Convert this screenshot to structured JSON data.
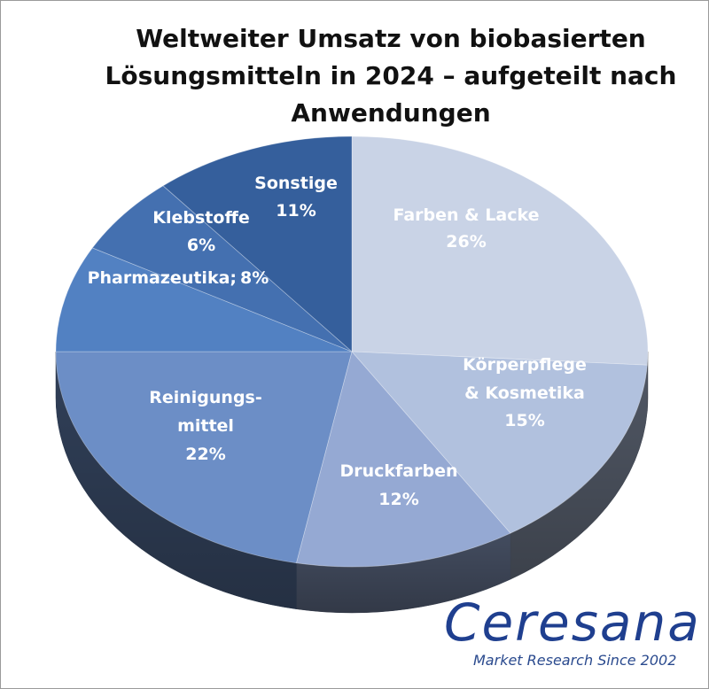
{
  "chart_data": {
    "type": "pie",
    "title": "Weltweiter Umsatz von biobasierten Lösungsmitteln in 2024 – aufgeteilt nach Anwendungen",
    "categories": [
      "Farben & Lacke",
      "Körperpflege\n& Kosmetika",
      "Druckfarben",
      "Reinigungs-\nmittel",
      "Pharmazeutika;",
      "Klebstoffe",
      "Sonstige"
    ],
    "values": [
      26,
      15,
      12,
      22,
      8,
      6,
      11
    ],
    "value_labels": [
      "26%",
      "15%",
      "12%",
      "22%",
      "8%",
      "6%",
      "11%"
    ],
    "colors": [
      "#c9d3e6",
      "#b1c1de",
      "#95a9d3",
      "#6c8ec6",
      "#5281c2",
      "#4470b0",
      "#355f9c"
    ]
  },
  "logo": {
    "name": "Ceresana",
    "tagline": "Market Research Since 2002"
  }
}
